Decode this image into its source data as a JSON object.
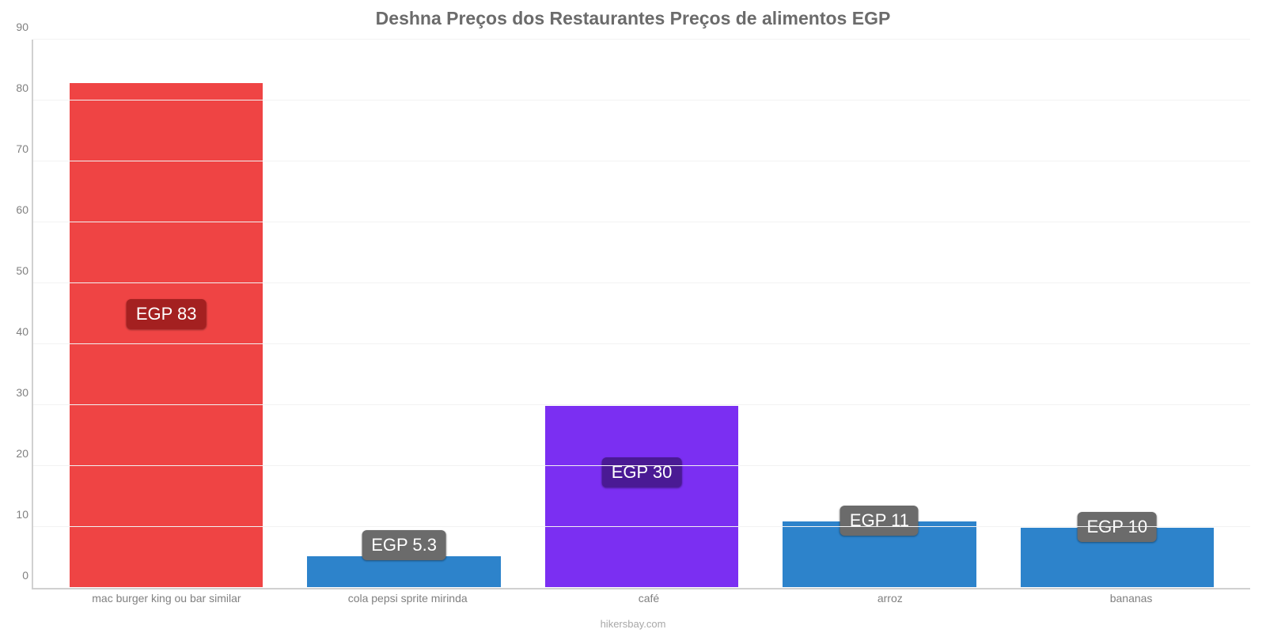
{
  "chart": {
    "type": "bar",
    "title": "Deshna Preços dos Restaurantes Preços de alimentos EGP",
    "title_fontsize": 23,
    "title_color": "#6b6b6b",
    "categories": [
      "mac burger king ou bar similar",
      "cola pepsi sprite mirinda",
      "café",
      "arroz",
      "bananas"
    ],
    "values": [
      83,
      5.3,
      30,
      11,
      10
    ],
    "value_labels": [
      "EGP 83",
      "EGP 5.3",
      "EGP 30",
      "EGP 11",
      "EGP 10"
    ],
    "bar_colors": [
      "#ef4444",
      "#2d83cb",
      "#7b2ff2",
      "#2d83cb",
      "#2d83cb"
    ],
    "badge_colors": [
      "#a42020",
      "#6b6b6b",
      "#4a1a94",
      "#6b6b6b",
      "#6b6b6b"
    ],
    "label_value_positions": [
      45,
      7,
      19,
      11,
      10
    ],
    "ylim": [
      0,
      90
    ],
    "ytick_step": 10,
    "yticks": [
      0,
      10,
      20,
      30,
      40,
      50,
      60,
      70,
      80,
      90
    ],
    "bar_width": 0.82,
    "background_color": "#ffffff",
    "grid_color": "#f2f2f2",
    "axis_color": "#d0d0d0",
    "tick_fontsize": 14,
    "tick_color": "#808080",
    "category_fontsize": 14,
    "category_color": "#808080",
    "value_label_fontsize": 22,
    "credit": "hikersbay.com",
    "credit_fontsize": 13,
    "credit_color": "#a8a8a8"
  }
}
